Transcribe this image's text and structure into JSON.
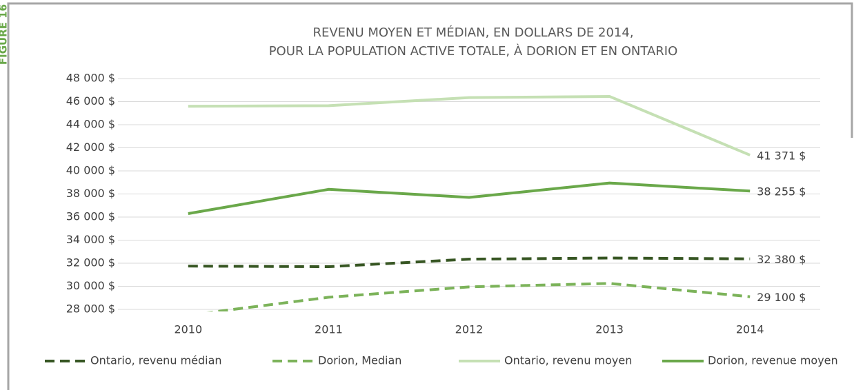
{
  "figure_label": "FIGURE 16",
  "chart_data": {
    "type": "line",
    "title": [
      "REVENU MOYEN ET MÉDIAN, EN DOLLARS DE 2014,",
      "POUR LA POPULATION ACTIVE TOTALE, À DORION ET EN ONTARIO"
    ],
    "categories": [
      "2010",
      "2011",
      "2012",
      "2013",
      "2014"
    ],
    "series": [
      {
        "name": "Ontario, revenu médian",
        "color": "#375623",
        "dash": true,
        "values": [
          31750,
          31700,
          32350,
          32450,
          32380
        ],
        "value_labels": [
          null,
          null,
          null,
          null,
          "32 380 $"
        ]
      },
      {
        "name": "Dorion, Median",
        "color": "#7cb35a",
        "dash": true,
        "values": [
          27500,
          29050,
          29950,
          30250,
          29100
        ],
        "value_labels": [
          null,
          null,
          null,
          null,
          "29 100 $"
        ]
      },
      {
        "name": "Ontario, revenu moyen",
        "color": "#c5e0b4",
        "dash": false,
        "values": [
          45600,
          45650,
          46350,
          46450,
          41371
        ],
        "value_labels": [
          null,
          null,
          null,
          null,
          "41 371 $"
        ]
      },
      {
        "name": "Dorion, revenue moyen",
        "color": "#6aa84a",
        "dash": false,
        "values": [
          36300,
          38400,
          37700,
          38950,
          38255
        ],
        "value_labels": [
          null,
          null,
          null,
          null,
          "38 255 $"
        ]
      }
    ],
    "ylim": [
      28000,
      48000
    ],
    "yticks": [
      {
        "value": 28000,
        "label": "28 000 $"
      },
      {
        "value": 30000,
        "label": "30 000 $"
      },
      {
        "value": 32000,
        "label": "32 000 $"
      },
      {
        "value": 34000,
        "label": "34 000 $"
      },
      {
        "value": 36000,
        "label": "36 000 $"
      },
      {
        "value": 38000,
        "label": "38 000 $"
      },
      {
        "value": 40000,
        "label": "40 000 $"
      },
      {
        "value": 42000,
        "label": "42 000 $"
      },
      {
        "value": 44000,
        "label": "44 000 $"
      },
      {
        "value": 46000,
        "label": "46 000 $"
      },
      {
        "value": 48000,
        "label": "48 000 $"
      }
    ],
    "grid": true,
    "legend": "bottom"
  }
}
